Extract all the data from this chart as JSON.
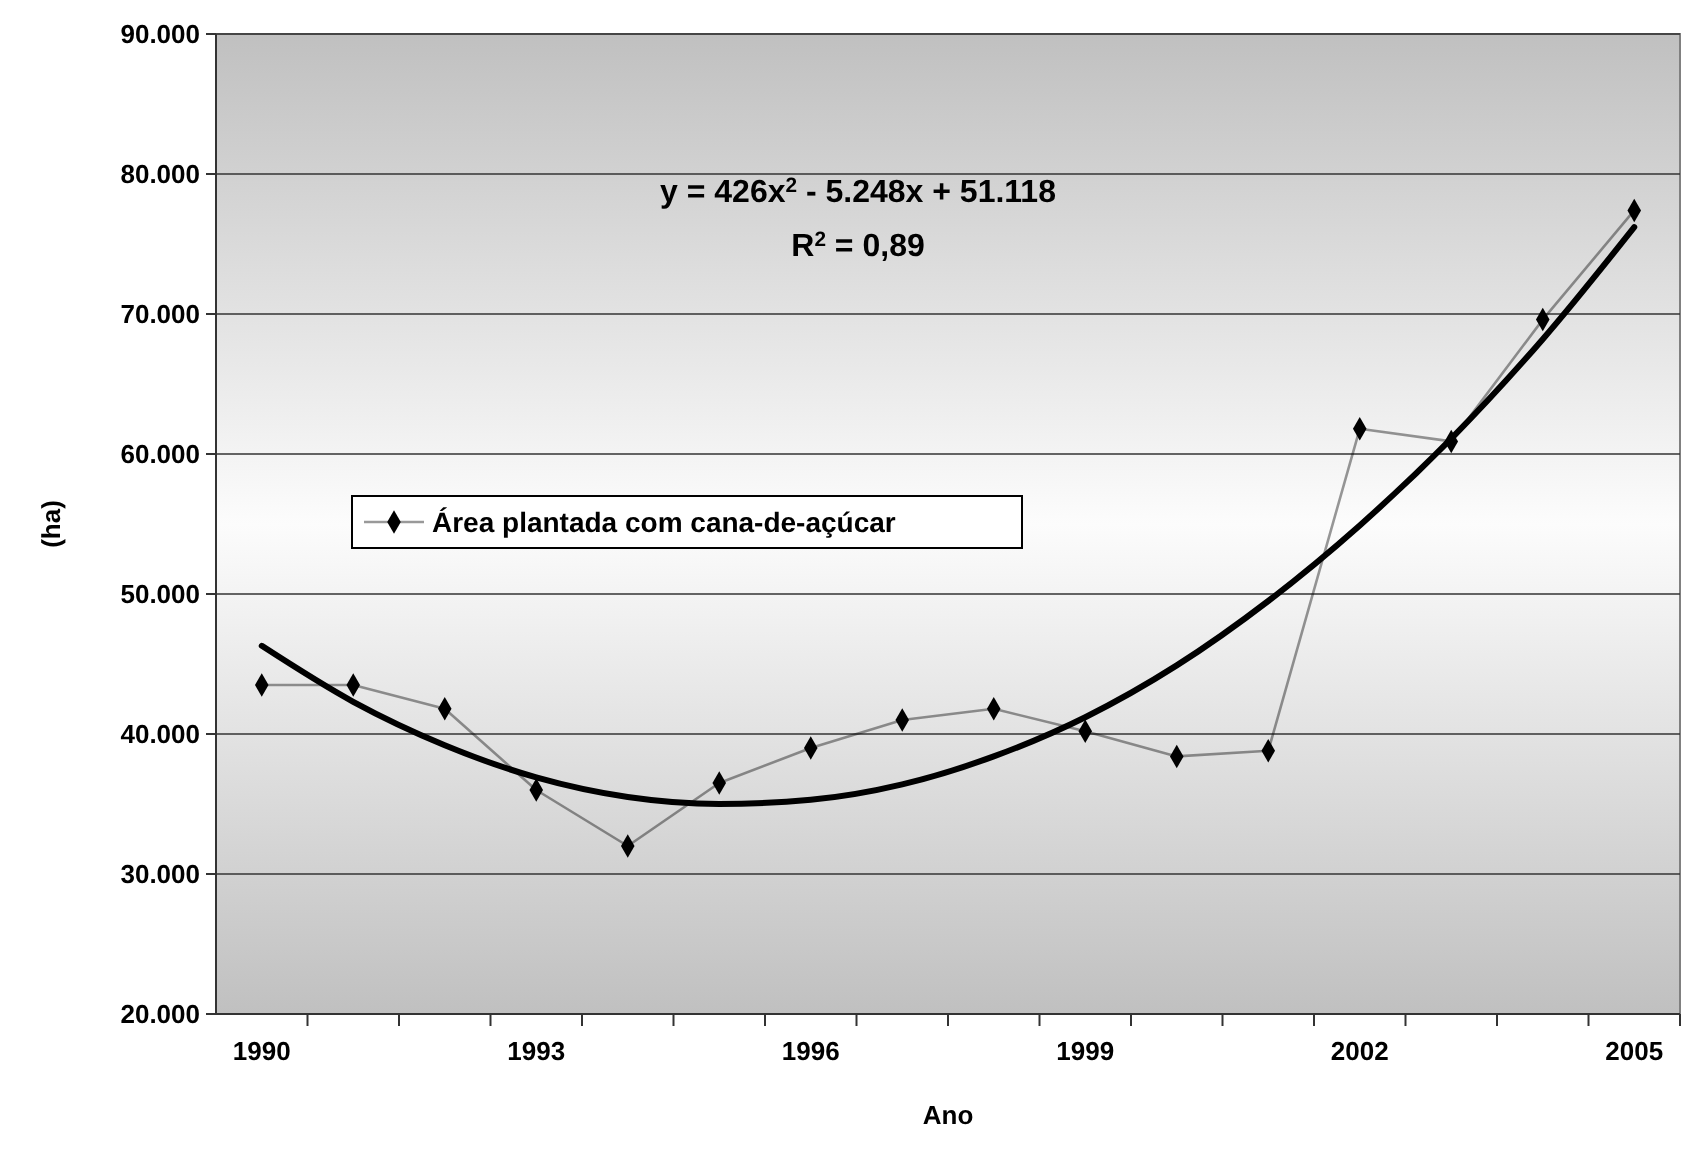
{
  "chart_data": {
    "type": "line",
    "xlabel": "Ano",
    "ylabel": "(ha)",
    "categories": [
      "1990",
      null,
      null,
      "1993",
      null,
      null,
      "1996",
      null,
      null,
      "1999",
      null,
      null,
      "2002",
      null,
      null,
      "2005"
    ],
    "ylim": [
      20000,
      90000
    ],
    "yticks": [
      {
        "value": 20000,
        "label": "20.000"
      },
      {
        "value": 30000,
        "label": "30.000"
      },
      {
        "value": 40000,
        "label": "40.000"
      },
      {
        "value": 50000,
        "label": "50.000"
      },
      {
        "value": 60000,
        "label": "60.000"
      },
      {
        "value": 70000,
        "label": "70.000"
      },
      {
        "value": 80000,
        "label": "80.000"
      },
      {
        "value": 90000,
        "label": "90.000"
      }
    ],
    "grid": "y",
    "legend": "left",
    "series": [
      {
        "name": "Área plantada com cana-de-açúcar",
        "color": "#000000",
        "marker": "diamond",
        "line_style": "solid",
        "values": [
          43500,
          43500,
          41800,
          36000,
          32000,
          36500,
          39000,
          41000,
          41800,
          40200,
          38400,
          38800,
          61800,
          60900,
          69600,
          77400
        ]
      },
      {
        "type": "line",
        "color": "#000000",
        "marker": "none",
        "line_style": "solid",
        "values": [
          46300,
          42300,
          39200,
          36900,
          35500,
          35000,
          35300,
          36400,
          38400,
          41200,
          44900,
          49500,
          54900,
          61100,
          68200,
          76200
        ]
      }
    ],
    "annotations": [
      "y = 426x$^{2}$ - 5.248x + 51.118",
      "R$^{2}$ = 0,89"
    ]
  }
}
